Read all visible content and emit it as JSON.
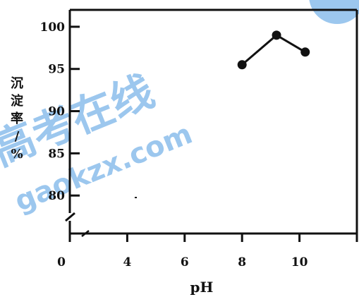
{
  "chart_data": {
    "type": "line",
    "title": "",
    "xlabel": "pH",
    "ylabel": "沉淀率/%",
    "x": [
      8,
      9.2,
      10.2
    ],
    "series": [
      {
        "values": [
          95.5,
          99,
          97
        ]
      }
    ],
    "xticks": [
      "0",
      "4",
      "6",
      "8",
      "10"
    ],
    "yticks": [
      "80",
      "85",
      "90",
      "95",
      "100"
    ],
    "ylim": [
      75.5,
      102
    ],
    "xlim": [
      2,
      12
    ],
    "axis_break": "y",
    "grid": false,
    "legend": "none",
    "colors": {
      "line": "#111111",
      "marker": "#111111"
    }
  },
  "watermark": {
    "cn": "高考在线",
    "en": "gaokzx.com",
    "color": "#9cc7ee"
  }
}
